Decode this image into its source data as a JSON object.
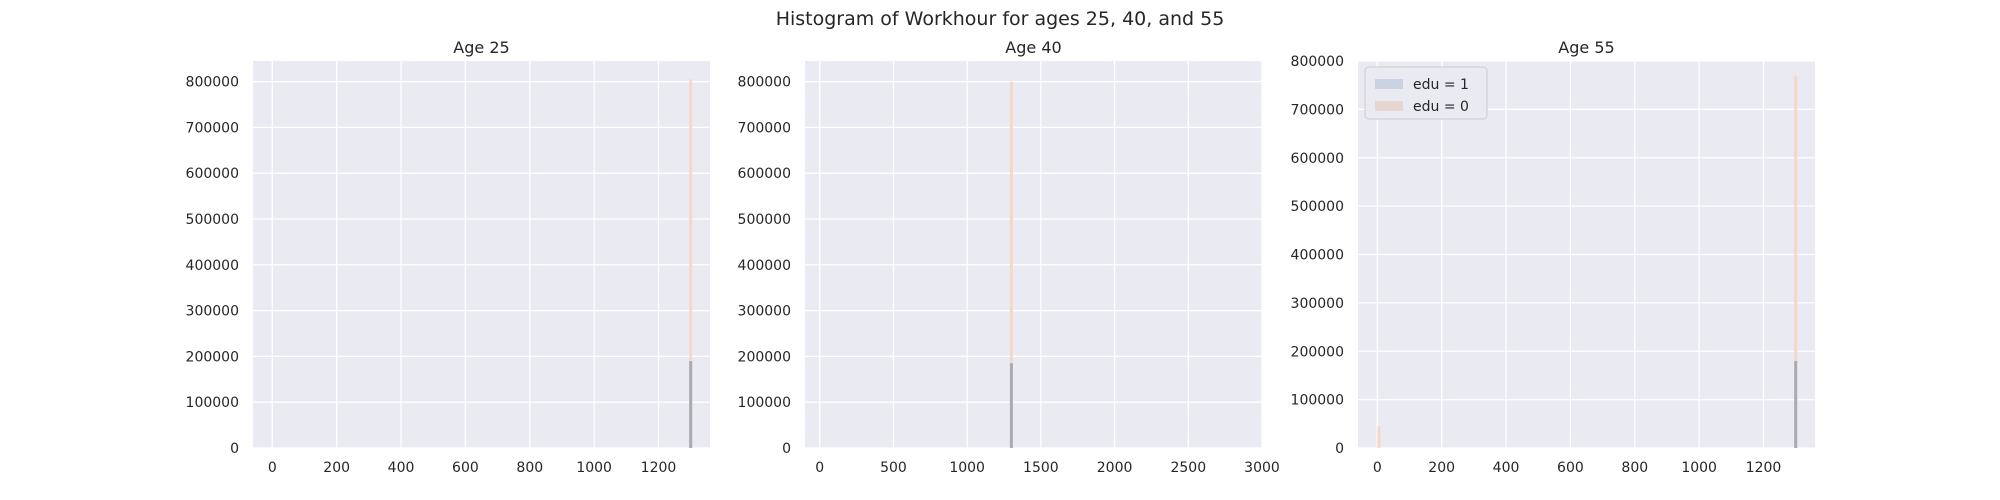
{
  "figure": {
    "title": "Histogram of Workhour for ages 25, 40, and 55"
  },
  "legend": {
    "placement": "top-left",
    "entries": [
      {
        "label": "edu = 1",
        "color": "#4c72b0"
      },
      {
        "label": "edu = 0",
        "color": "#dd8452"
      }
    ]
  },
  "chart_data": [
    {
      "type": "histogram",
      "title": "Age 25",
      "xlim": [
        -60,
        1360
      ],
      "ylim": [
        0,
        845000
      ],
      "xticks": [
        0,
        200,
        400,
        600,
        800,
        1000,
        1200
      ],
      "yticks": [
        0,
        100000,
        200000,
        300000,
        400000,
        500000,
        600000,
        700000,
        800000
      ],
      "grid": true,
      "series": [
        {
          "name": "edu = 1",
          "color": "#4c72b0",
          "bins": [
            {
              "x": 1300,
              "count": 190000
            }
          ]
        },
        {
          "name": "edu = 0",
          "color": "#dd8452",
          "bins": [
            {
              "x": 1300,
              "count": 805000
            }
          ]
        }
      ]
    },
    {
      "type": "histogram",
      "title": "Age 40",
      "xlim": [
        -100,
        3000
      ],
      "ylim": [
        0,
        845000
      ],
      "xticks": [
        0,
        500,
        1000,
        1500,
        2000,
        2500,
        3000
      ],
      "yticks": [
        0,
        100000,
        200000,
        300000,
        400000,
        500000,
        600000,
        700000,
        800000
      ],
      "grid": true,
      "series": [
        {
          "name": "edu = 1",
          "color": "#4c72b0",
          "bins": [
            {
              "x": 1300,
              "count": 185000
            }
          ]
        },
        {
          "name": "edu = 0",
          "color": "#dd8452",
          "bins": [
            {
              "x": 1300,
              "count": 800000
            }
          ]
        }
      ]
    },
    {
      "type": "histogram",
      "title": "Age 55",
      "xlim": [
        -60,
        1360
      ],
      "ylim": [
        0,
        800000
      ],
      "xticks": [
        0,
        200,
        400,
        600,
        800,
        1000,
        1200
      ],
      "yticks": [
        0,
        100000,
        200000,
        300000,
        400000,
        500000,
        600000,
        700000,
        800000
      ],
      "grid": true,
      "series": [
        {
          "name": "edu = 1",
          "color": "#4c72b0",
          "bins": [
            {
              "x": 1300,
              "count": 180000
            }
          ]
        },
        {
          "name": "edu = 0",
          "color": "#dd8452",
          "bins": [
            {
              "x": 1300,
              "count": 770000
            },
            {
              "x": 5,
              "count": 45000
            }
          ]
        }
      ]
    }
  ]
}
